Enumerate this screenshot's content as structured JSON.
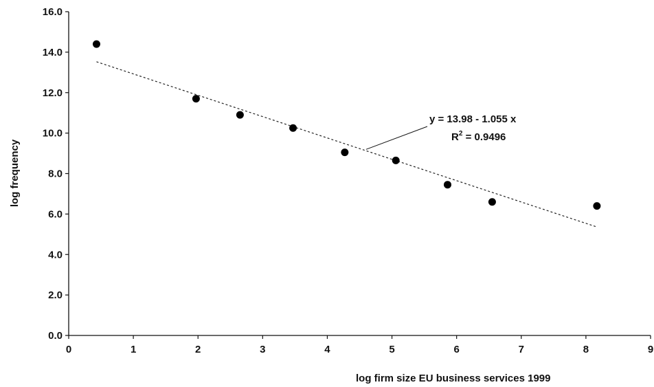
{
  "chart_data": {
    "type": "scatter",
    "title": "",
    "xlabel": "log firm size  EU business services 1999",
    "ylabel": "log frequency",
    "xlim": [
      0,
      9
    ],
    "ylim": [
      0,
      16
    ],
    "xticks": [
      0,
      1,
      2,
      3,
      4,
      5,
      6,
      7,
      8,
      9
    ],
    "xtick_labels": [
      "0",
      "1",
      "2",
      "3",
      "4",
      "5",
      "6",
      "7",
      "8",
      "9"
    ],
    "yticks": [
      0,
      2,
      4,
      6,
      8,
      10,
      12,
      14,
      16
    ],
    "ytick_labels": [
      "0.0",
      "2.0",
      "4.0",
      "6.0",
      "8.0",
      "10.0",
      "12.0",
      "14.0",
      "16.0"
    ],
    "grid": false,
    "legend": "none",
    "series": [
      {
        "x": [
          0.43,
          1.97,
          2.65,
          3.47,
          4.27,
          5.06,
          5.86,
          6.55,
          8.17
        ],
        "y": [
          14.4,
          11.7,
          10.9,
          10.25,
          9.05,
          8.65,
          7.45,
          6.6,
          6.4
        ],
        "color": "#000000"
      }
    ],
    "trendline": {
      "intercept": 13.98,
      "slope": -1.055,
      "x_range": [
        0.43,
        8.17
      ],
      "style": "dashed"
    },
    "annotation": {
      "equation": "y = 13.98 - 1.055 x",
      "r2_prefix": "R",
      "r2_sup": "2",
      "r2_rest": " = 0.9496"
    }
  }
}
